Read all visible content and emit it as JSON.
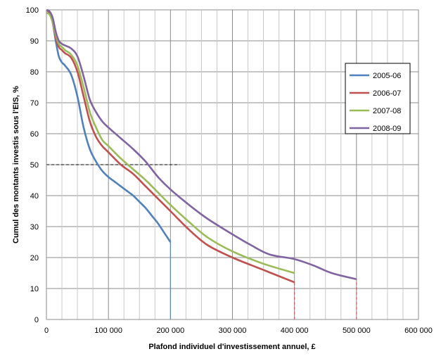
{
  "chart_data": {
    "type": "line",
    "title": "",
    "xlabel": "Plafond individuel d'investissement annuel, £",
    "ylabel": "Cumul des montants investis sous l'EIS, %",
    "xlim": [
      0,
      600000
    ],
    "ylim": [
      0,
      100
    ],
    "x_ticks": [
      0,
      100000,
      200000,
      300000,
      400000,
      500000,
      600000
    ],
    "x_tick_labels": [
      "0",
      "100 000",
      "200 000",
      "300 000",
      "400 000",
      "500 000",
      "600 000"
    ],
    "y_ticks": [
      0,
      10,
      20,
      30,
      40,
      50,
      60,
      70,
      80,
      90,
      100
    ],
    "y_tick_labels": [
      "0",
      "10",
      "20",
      "30",
      "40",
      "50",
      "60",
      "70",
      "80",
      "90",
      "100"
    ],
    "grid": true,
    "legend_position": "right",
    "series": [
      {
        "name": "2005-06",
        "color": "#4F81BD",
        "x": [
          0,
          5000,
          10000,
          15000,
          20000,
          25000,
          30000,
          40000,
          50000,
          60000,
          70000,
          80000,
          90000,
          100000,
          110000,
          120000,
          130000,
          140000,
          150000,
          160000,
          170000,
          180000,
          190000,
          200000
        ],
        "y": [
          100,
          99,
          96,
          90,
          85,
          83,
          82,
          79,
          72,
          62,
          55,
          51,
          48,
          46,
          44.5,
          43,
          41.5,
          40,
          38,
          36,
          33.5,
          31,
          28,
          25
        ]
      },
      {
        "name": "2006-07",
        "color": "#C0504D",
        "x": [
          0,
          5000,
          10000,
          15000,
          20000,
          25000,
          30000,
          40000,
          50000,
          60000,
          70000,
          80000,
          90000,
          100000,
          120000,
          140000,
          160000,
          180000,
          200000,
          230000,
          260000,
          300000,
          350000,
          400000
        ],
        "y": [
          100,
          99,
          96,
          91,
          88,
          87,
          86,
          84.5,
          80,
          72,
          64,
          59,
          56,
          54,
          50,
          47,
          43,
          39,
          35,
          29,
          24,
          20,
          16,
          12
        ]
      },
      {
        "name": "2007-08",
        "color": "#9BBB59",
        "x": [
          0,
          5000,
          10000,
          15000,
          20000,
          25000,
          30000,
          40000,
          50000,
          60000,
          70000,
          80000,
          90000,
          100000,
          120000,
          140000,
          160000,
          180000,
          200000,
          230000,
          260000,
          300000,
          350000,
          400000
        ],
        "y": [
          99,
          98.5,
          96,
          92,
          89,
          88,
          87,
          85.5,
          82,
          75,
          67,
          62,
          58,
          56,
          52,
          48.5,
          45,
          41,
          37,
          31.5,
          26.5,
          22,
          18,
          15
        ]
      },
      {
        "name": "2008-09",
        "color": "#8064A2",
        "x": [
          0,
          5000,
          10000,
          15000,
          20000,
          25000,
          30000,
          40000,
          50000,
          60000,
          70000,
          80000,
          90000,
          100000,
          120000,
          140000,
          160000,
          180000,
          200000,
          230000,
          260000,
          300000,
          330000,
          360000,
          400000,
          430000,
          460000,
          500000
        ],
        "y": [
          100,
          99.5,
          97.5,
          93,
          90,
          89,
          88.5,
          87.5,
          85,
          78.5,
          71,
          67,
          64,
          62,
          58.5,
          55,
          51,
          46,
          42,
          37,
          32.5,
          27.5,
          24,
          21,
          19.5,
          17.5,
          15,
          13
        ]
      }
    ],
    "reference_lines": [
      {
        "kind": "horizontal-dashed",
        "y": 50,
        "x_from": 0,
        "x_to": 215000,
        "color": "#000000"
      },
      {
        "kind": "vertical",
        "x": 200000,
        "y_from": 0,
        "y_to": 25,
        "color": "#4F81BD"
      },
      {
        "kind": "vertical-dashed",
        "x": 400000,
        "y_from": 0,
        "y_to": 12,
        "color": "#C0504D"
      },
      {
        "kind": "vertical-dashed",
        "x": 500000,
        "y_from": 0,
        "y_to": 13,
        "color": "#C0504D"
      }
    ]
  }
}
